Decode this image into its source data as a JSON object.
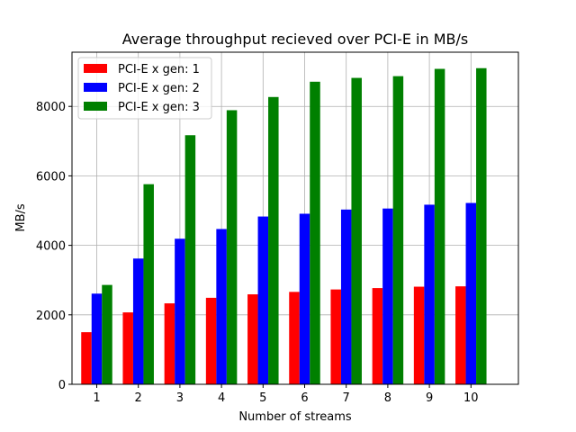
{
  "chart_data": {
    "type": "bar",
    "title": "Average throughput recieved over PCI-E in MB/s",
    "xlabel": "Number of streams",
    "ylabel": "MB/s",
    "categories": [
      "1",
      "2",
      "3",
      "4",
      "5",
      "6",
      "7",
      "8",
      "9",
      "10"
    ],
    "series": [
      {
        "name": "PCI-E x gen: 1",
        "color": "#ff0000",
        "values": [
          1500,
          2070,
          2330,
          2490,
          2590,
          2660,
          2730,
          2770,
          2810,
          2820
        ]
      },
      {
        "name": "PCI-E x gen: 2",
        "color": "#0000ff",
        "values": [
          2610,
          3620,
          4190,
          4470,
          4830,
          4910,
          5030,
          5060,
          5170,
          5220
        ]
      },
      {
        "name": "PCI-E x gen: 3",
        "color": "#008000",
        "values": [
          2860,
          5760,
          7170,
          7890,
          8270,
          8710,
          8820,
          8870,
          9080,
          9100
        ]
      }
    ],
    "ylim": [
      0,
      9560
    ],
    "yticks": [
      0,
      2000,
      4000,
      6000,
      8000
    ],
    "grid": true,
    "legend_position": "top-left"
  }
}
